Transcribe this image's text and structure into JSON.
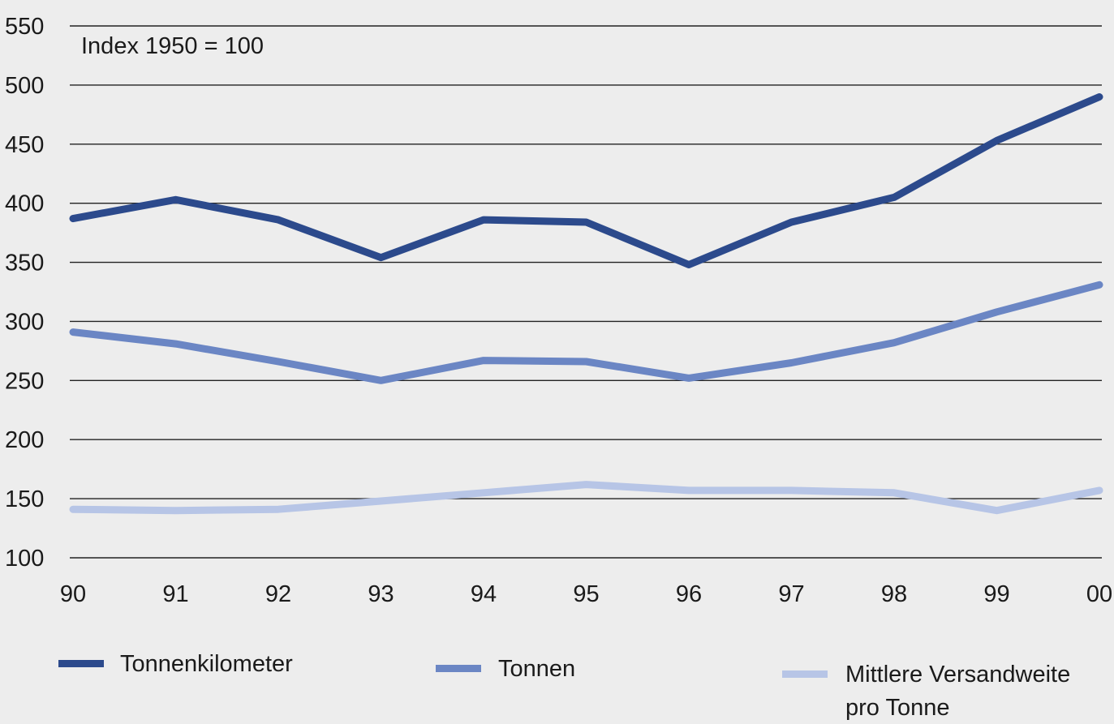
{
  "chart_data": {
    "type": "line",
    "annotation": "Index 1950 = 100",
    "categories": [
      "90",
      "91",
      "92",
      "93",
      "94",
      "95",
      "96",
      "97",
      "98",
      "99",
      "00"
    ],
    "y_ticks": [
      100,
      150,
      200,
      250,
      300,
      350,
      400,
      450,
      500,
      550
    ],
    "ylim": [
      100,
      550
    ],
    "grid": true,
    "legend_position": "bottom",
    "series": [
      {
        "name": "Tonnenkilometer",
        "color": "#2c4a8c",
        "values": [
          387,
          403,
          386,
          354,
          386,
          384,
          348,
          384,
          405,
          453,
          490
        ]
      },
      {
        "name": "Tonnen",
        "color": "#6b86c4",
        "values": [
          291,
          281,
          266,
          250,
          267,
          266,
          252,
          265,
          282,
          308,
          331
        ]
      },
      {
        "name": "Mittlere Versandweite pro Tonne",
        "color": "#b7c5e6",
        "values": [
          141,
          140,
          141,
          148,
          155,
          162,
          157,
          157,
          155,
          140,
          157
        ]
      }
    ]
  }
}
